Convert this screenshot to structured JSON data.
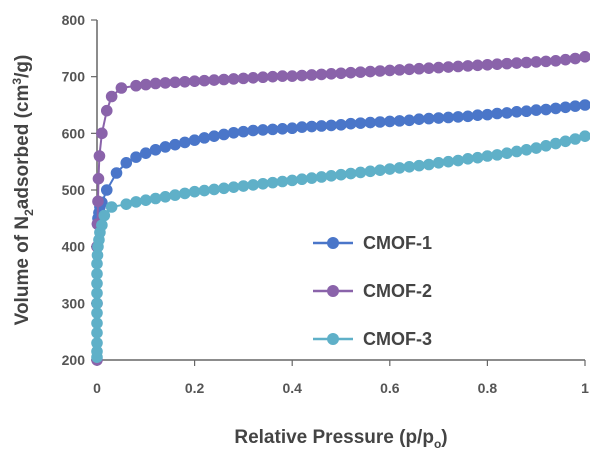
{
  "chart_data": {
    "type": "scatter",
    "xlabel_prefix": "Relative Pressure (p/p",
    "xlabel_sub": "o",
    "xlabel_suffix": ")",
    "ylabel_prefix": "Volume of N",
    "ylabel_sub": "2",
    "ylabel_mid": "adsorbed (cm",
    "ylabel_sup": "3",
    "ylabel_suffix": "/g)",
    "xlim": [
      0,
      1
    ],
    "ylim": [
      200,
      800
    ],
    "x_ticks": [
      {
        "value": 0,
        "label": "0"
      },
      {
        "value": 0.2,
        "label": "0.2"
      },
      {
        "value": 0.4,
        "label": "0.4"
      },
      {
        "value": 0.6,
        "label": "0.6"
      },
      {
        "value": 0.8,
        "label": "0.8"
      },
      {
        "value": 1,
        "label": "1"
      }
    ],
    "y_ticks": [
      {
        "value": 200,
        "label": "200"
      },
      {
        "value": 300,
        "label": "300"
      },
      {
        "value": 400,
        "label": "400"
      },
      {
        "value": 500,
        "label": "500"
      },
      {
        "value": 600,
        "label": "600"
      },
      {
        "value": 700,
        "label": "700"
      },
      {
        "value": 800,
        "label": "800"
      }
    ],
    "grid": false,
    "legend_position": "center-right",
    "series": [
      {
        "name": "CMOF-1",
        "color": "#4a76c9",
        "x": [
          0.001,
          0.002,
          0.004,
          0.006,
          0.01,
          0.02,
          0.04,
          0.06,
          0.08,
          0.1,
          0.12,
          0.14,
          0.16,
          0.18,
          0.2,
          0.22,
          0.24,
          0.26,
          0.28,
          0.3,
          0.32,
          0.34,
          0.36,
          0.38,
          0.4,
          0.42,
          0.44,
          0.46,
          0.48,
          0.5,
          0.52,
          0.54,
          0.56,
          0.58,
          0.6,
          0.62,
          0.64,
          0.66,
          0.68,
          0.7,
          0.72,
          0.74,
          0.76,
          0.78,
          0.8,
          0.82,
          0.84,
          0.86,
          0.88,
          0.9,
          0.92,
          0.94,
          0.96,
          0.98,
          1.0
        ],
        "y": [
          440,
          450,
          460,
          470,
          478,
          500,
          530,
          548,
          558,
          565,
          571,
          576,
          580,
          584,
          588,
          592,
          595,
          598,
          601,
          603,
          605,
          606,
          607,
          608,
          609,
          611,
          612,
          613,
          614,
          615,
          617,
          618,
          619,
          620,
          621,
          622,
          623,
          625,
          626,
          627,
          628,
          629,
          630,
          632,
          633,
          635,
          636,
          638,
          639,
          641,
          642,
          644,
          646,
          648,
          650
        ]
      },
      {
        "name": "CMOF-2",
        "color": "#8a63aa",
        "x": [
          0.0,
          0.0,
          0.0,
          0.001,
          0.002,
          0.003,
          0.005,
          0.01,
          0.02,
          0.03,
          0.05,
          0.08,
          0.1,
          0.12,
          0.14,
          0.16,
          0.18,
          0.2,
          0.22,
          0.24,
          0.26,
          0.28,
          0.3,
          0.32,
          0.34,
          0.36,
          0.38,
          0.4,
          0.42,
          0.44,
          0.46,
          0.48,
          0.5,
          0.52,
          0.54,
          0.56,
          0.58,
          0.6,
          0.62,
          0.64,
          0.66,
          0.68,
          0.7,
          0.72,
          0.74,
          0.76,
          0.78,
          0.8,
          0.82,
          0.84,
          0.86,
          0.88,
          0.9,
          0.92,
          0.94,
          0.96,
          0.98,
          1.0
        ],
        "y": [
          200,
          300,
          400,
          440,
          480,
          520,
          560,
          600,
          640,
          665,
          680,
          684,
          686,
          688,
          689,
          690,
          691,
          692,
          693,
          694,
          695,
          696,
          697,
          698,
          699,
          700,
          701,
          701,
          702,
          703,
          704,
          705,
          706,
          707,
          708,
          709,
          710,
          711,
          712,
          713,
          714,
          715,
          716,
          717,
          718,
          719,
          720,
          721,
          722,
          723,
          724,
          725,
          726,
          727,
          728,
          730,
          732,
          735
        ]
      },
      {
        "name": "CMOF-3",
        "color": "#5fb0c8",
        "x": [
          0.0,
          0.0,
          0.0,
          0.0,
          0.0,
          0.0,
          0.0,
          0.0,
          0.0,
          0.0,
          0.0,
          0.001,
          0.002,
          0.004,
          0.006,
          0.01,
          0.015,
          0.03,
          0.06,
          0.08,
          0.1,
          0.12,
          0.14,
          0.16,
          0.18,
          0.2,
          0.22,
          0.24,
          0.26,
          0.28,
          0.3,
          0.32,
          0.34,
          0.36,
          0.38,
          0.4,
          0.42,
          0.44,
          0.46,
          0.48,
          0.5,
          0.52,
          0.54,
          0.56,
          0.58,
          0.6,
          0.62,
          0.64,
          0.66,
          0.68,
          0.7,
          0.72,
          0.74,
          0.76,
          0.78,
          0.8,
          0.82,
          0.84,
          0.86,
          0.88,
          0.9,
          0.92,
          0.94,
          0.96,
          0.98,
          1.0
        ],
        "y": [
          205,
          215,
          230,
          248,
          265,
          283,
          300,
          318,
          335,
          352,
          370,
          385,
          400,
          412,
          425,
          438,
          455,
          470,
          475,
          479,
          482,
          485,
          488,
          491,
          494,
          497,
          499,
          501,
          503,
          505,
          507,
          509,
          511,
          513,
          515,
          517,
          519,
          521,
          523,
          525,
          527,
          529,
          531,
          533,
          535,
          537,
          539,
          541,
          543,
          545,
          548,
          550,
          552,
          555,
          557,
          560,
          562,
          565,
          568,
          571,
          574,
          578,
          582,
          586,
          590,
          595
        ]
      }
    ]
  }
}
